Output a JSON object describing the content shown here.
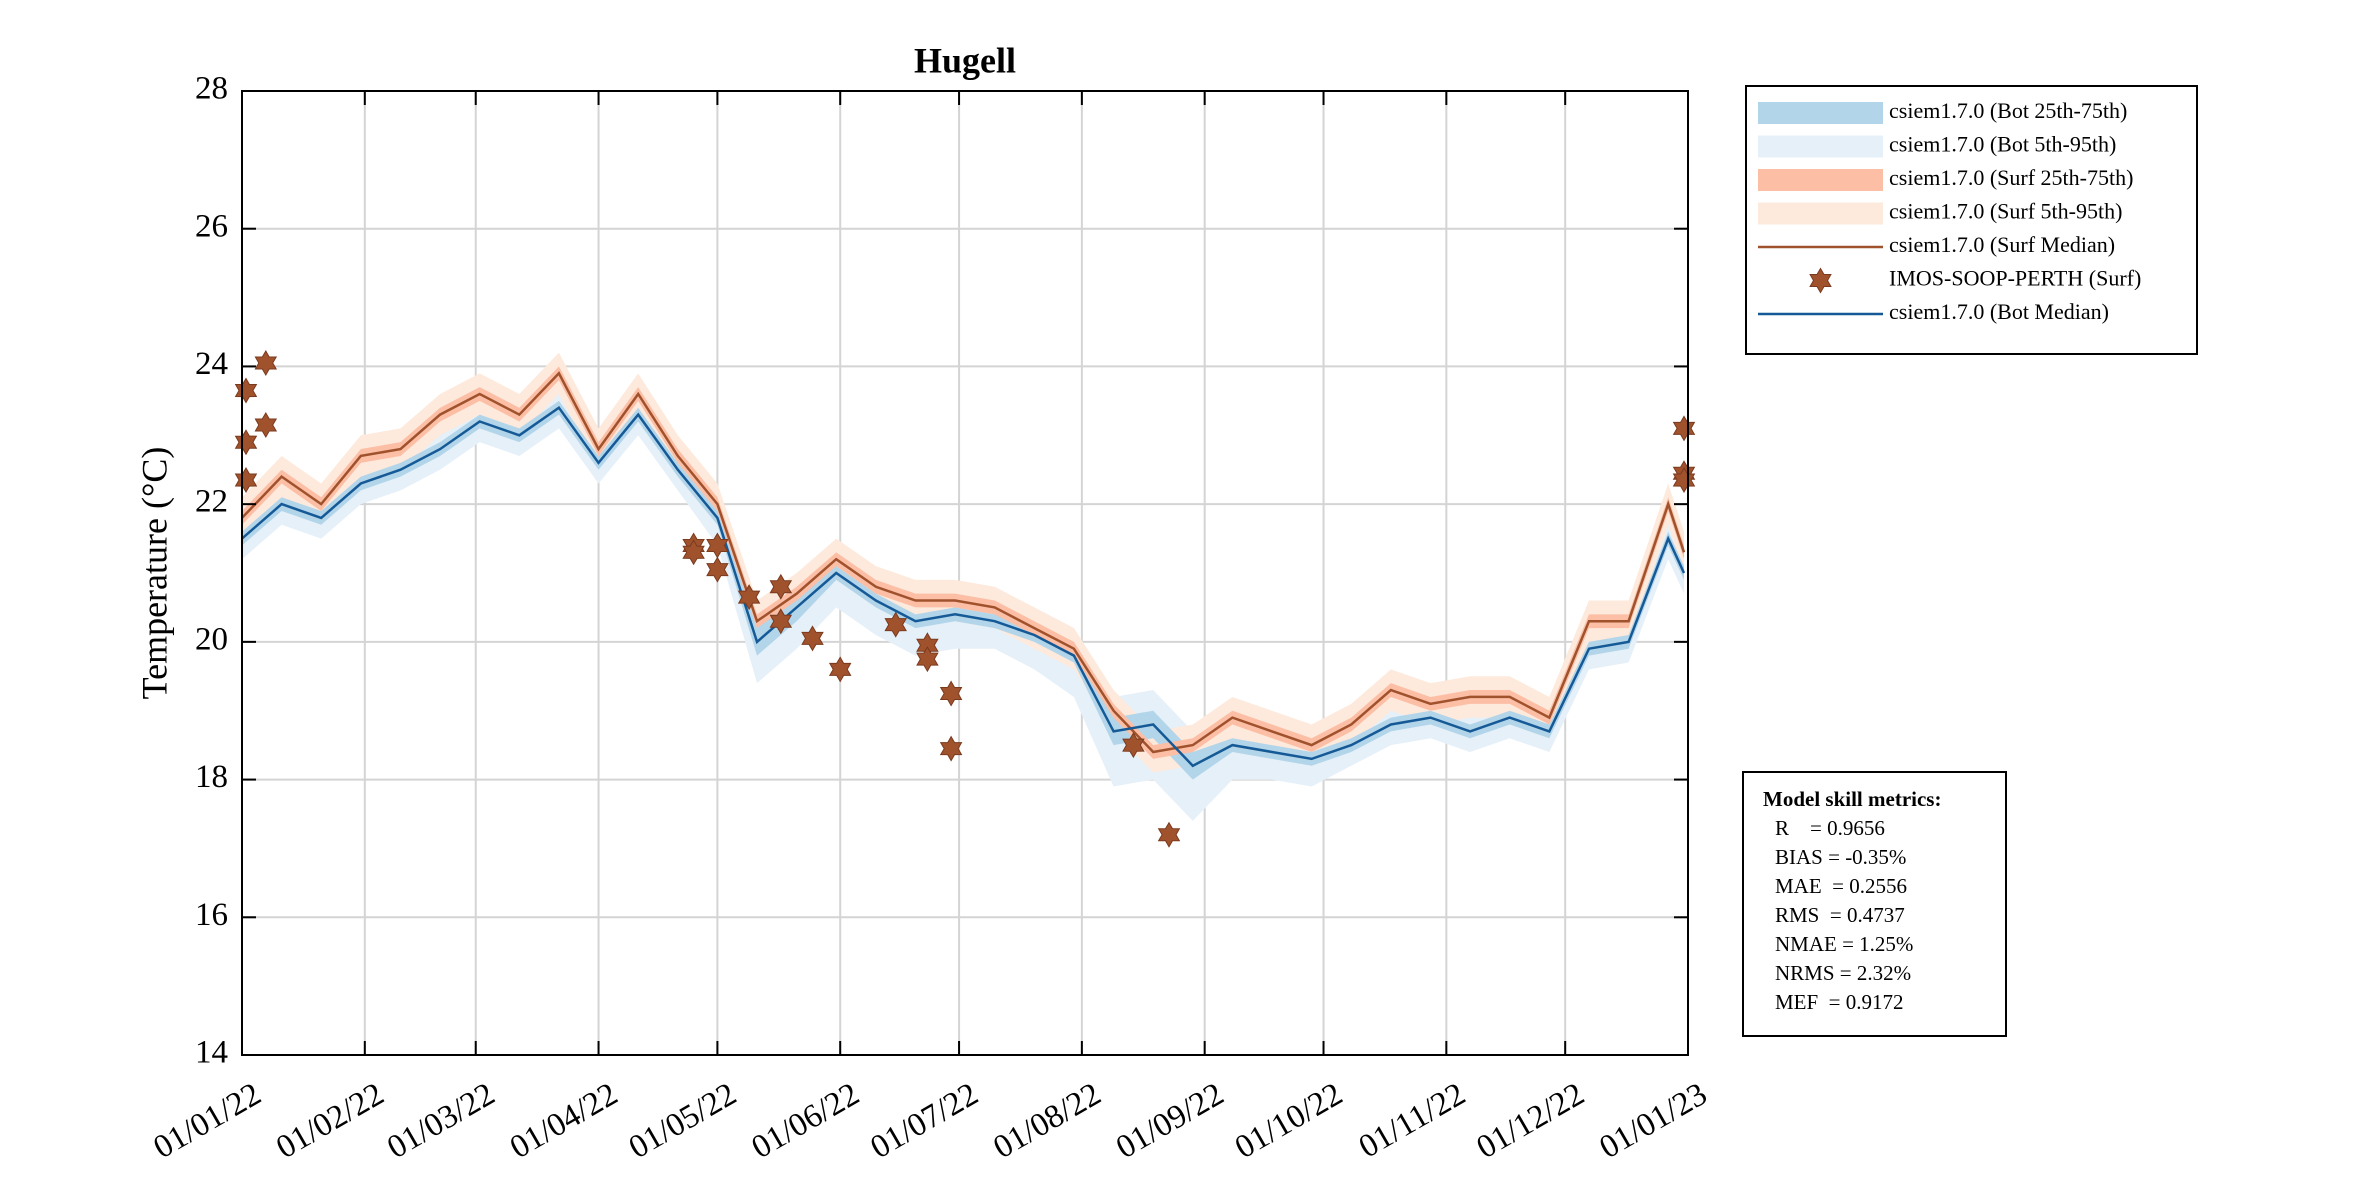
{
  "chart_data": {
    "type": "line",
    "title": "Hugell",
    "y_label": "Temperature (°C)",
    "xlim": [
      "01/01/22",
      "01/01/23"
    ],
    "xticks": [
      "01/01/22",
      "01/02/22",
      "01/03/22",
      "01/04/22",
      "01/05/22",
      "01/06/22",
      "01/07/22",
      "01/08/22",
      "01/09/22",
      "01/10/22",
      "01/11/22",
      "01/12/22",
      "01/01/23"
    ],
    "ylim": [
      14,
      28
    ],
    "yticks": [
      14,
      16,
      18,
      20,
      22,
      24,
      26,
      28
    ],
    "grid": true,
    "legend": "outside-right",
    "x": [
      "01/01/22",
      "11/01/22",
      "21/01/22",
      "31/01/22",
      "10/02/22",
      "20/02/22",
      "02/03/22",
      "12/03/22",
      "22/03/22",
      "01/04/22",
      "11/04/22",
      "21/04/22",
      "01/05/22",
      "11/05/22",
      "21/05/22",
      "31/05/22",
      "10/06/22",
      "20/06/22",
      "30/06/22",
      "10/07/22",
      "20/07/22",
      "30/07/22",
      "09/08/22",
      "19/08/22",
      "29/08/22",
      "08/09/22",
      "18/09/22",
      "28/09/22",
      "08/10/22",
      "18/10/22",
      "28/10/22",
      "07/11/22",
      "17/11/22",
      "27/11/22",
      "07/12/22",
      "17/12/22",
      "27/12/22",
      "31/12/22"
    ],
    "series": [
      {
        "name": "csiem1.7.0 (Bot 25th-75th)",
        "color": "#b3d5ea",
        "lower": [
          21.4,
          21.9,
          21.7,
          22.2,
          22.4,
          22.7,
          23.1,
          22.9,
          23.3,
          22.5,
          23.2,
          22.4,
          21.7,
          19.8,
          20.3,
          20.9,
          20.5,
          20.2,
          20.3,
          20.2,
          20.0,
          19.7,
          18.5,
          18.6,
          18.0,
          18.4,
          18.3,
          18.2,
          18.4,
          18.7,
          18.8,
          18.6,
          18.8,
          18.6,
          19.8,
          19.9,
          21.4,
          20.9
        ],
        "upper": [
          21.6,
          22.1,
          21.9,
          22.4,
          22.6,
          22.9,
          23.3,
          23.1,
          23.5,
          22.7,
          23.4,
          22.6,
          21.9,
          20.2,
          20.7,
          21.1,
          20.7,
          20.4,
          20.5,
          20.4,
          20.2,
          19.9,
          18.9,
          19.0,
          18.4,
          18.6,
          18.5,
          18.4,
          18.6,
          18.9,
          19.0,
          18.8,
          19.0,
          18.8,
          20.0,
          20.1,
          21.6,
          21.1
        ]
      },
      {
        "name": "csiem1.7.0 (Bot 5th-95th)",
        "color": "#e6f0f9",
        "lower": [
          21.2,
          21.7,
          21.5,
          22.0,
          22.2,
          22.5,
          22.9,
          22.7,
          23.1,
          22.3,
          23.0,
          22.2,
          21.4,
          19.4,
          19.9,
          20.5,
          20.1,
          19.8,
          19.9,
          19.9,
          19.6,
          19.2,
          17.9,
          18.0,
          17.4,
          18.0,
          18.0,
          17.9,
          18.2,
          18.5,
          18.6,
          18.4,
          18.6,
          18.4,
          19.6,
          19.7,
          21.2,
          20.7
        ],
        "upper": [
          21.8,
          22.3,
          22.1,
          22.6,
          22.8,
          23.1,
          23.5,
          23.3,
          23.7,
          22.9,
          23.6,
          22.8,
          22.1,
          20.5,
          21.0,
          21.4,
          21.0,
          20.7,
          20.8,
          20.7,
          20.5,
          20.2,
          19.2,
          19.3,
          18.7,
          18.8,
          18.7,
          18.6,
          18.8,
          19.1,
          19.2,
          19.0,
          19.2,
          19.0,
          20.2,
          20.3,
          21.8,
          21.3
        ]
      },
      {
        "name": "csiem1.7.0 (Surf 25th-75th)",
        "color": "#fcbfa6",
        "lower": [
          21.7,
          22.3,
          21.9,
          22.6,
          22.7,
          23.2,
          23.5,
          23.2,
          23.8,
          22.7,
          23.5,
          22.6,
          21.9,
          20.2,
          20.6,
          21.1,
          20.7,
          20.5,
          20.5,
          20.4,
          20.1,
          19.8,
          18.9,
          18.3,
          18.4,
          18.8,
          18.6,
          18.4,
          18.7,
          19.2,
          19.0,
          19.1,
          19.1,
          18.8,
          20.2,
          20.2,
          21.9,
          21.2
        ],
        "upper": [
          21.9,
          22.5,
          22.1,
          22.8,
          22.9,
          23.4,
          23.7,
          23.4,
          24.0,
          22.9,
          23.7,
          22.8,
          22.1,
          20.4,
          20.8,
          21.3,
          20.9,
          20.7,
          20.7,
          20.6,
          20.3,
          20.0,
          19.1,
          18.5,
          18.6,
          19.0,
          18.8,
          18.6,
          18.9,
          19.4,
          19.2,
          19.3,
          19.3,
          19.0,
          20.4,
          20.4,
          22.1,
          21.4
        ]
      },
      {
        "name": "csiem1.7.0 (Surf 5th-95th)",
        "color": "#fdeadc",
        "lower": [
          21.5,
          22.1,
          21.7,
          22.4,
          22.5,
          23.0,
          23.3,
          23.0,
          23.6,
          22.5,
          23.3,
          22.4,
          21.7,
          20.0,
          20.4,
          20.9,
          20.5,
          20.3,
          20.3,
          20.2,
          19.9,
          19.6,
          18.7,
          18.1,
          18.2,
          18.6,
          18.4,
          18.2,
          18.5,
          19.0,
          18.8,
          18.9,
          18.9,
          18.6,
          20.0,
          20.0,
          21.7,
          21.0
        ],
        "upper": [
          22.1,
          22.7,
          22.3,
          23.0,
          23.1,
          23.6,
          23.9,
          23.6,
          24.2,
          23.1,
          23.9,
          23.0,
          22.3,
          20.6,
          21.0,
          21.5,
          21.1,
          20.9,
          20.9,
          20.8,
          20.5,
          20.2,
          19.3,
          18.7,
          18.8,
          19.2,
          19.0,
          18.8,
          19.1,
          19.6,
          19.4,
          19.5,
          19.5,
          19.2,
          20.6,
          20.6,
          22.3,
          21.6
        ]
      },
      {
        "name": "csiem1.7.0 (Surf Median)",
        "color": "#a0522d",
        "values": [
          21.8,
          22.4,
          22.0,
          22.7,
          22.8,
          23.3,
          23.6,
          23.3,
          23.9,
          22.8,
          23.6,
          22.7,
          22.0,
          20.3,
          20.7,
          21.2,
          20.8,
          20.6,
          20.6,
          20.5,
          20.2,
          19.9,
          19.0,
          18.4,
          18.5,
          18.9,
          18.7,
          18.5,
          18.8,
          19.3,
          19.1,
          19.2,
          19.2,
          18.9,
          20.3,
          20.3,
          22.0,
          21.3
        ]
      },
      {
        "name": "IMOS-SOOP-PERTH (Surf)",
        "color": "#a0522d",
        "x": [
          "02/01/22",
          "02/01/22",
          "02/01/22",
          "07/01/22",
          "07/01/22",
          "25/04/22",
          "25/04/22",
          "01/05/22",
          "01/05/22",
          "09/05/22",
          "17/05/22",
          "17/05/22",
          "25/05/22",
          "01/06/22",
          "15/06/22",
          "23/06/22",
          "23/06/22",
          "29/06/22",
          "29/06/22",
          "14/08/22",
          "23/08/22",
          "31/12/22",
          "31/12/22",
          "31/12/22"
        ],
        "values": [
          23.65,
          22.9,
          22.35,
          24.05,
          23.15,
          21.4,
          21.3,
          21.4,
          21.05,
          20.65,
          20.8,
          20.3,
          20.05,
          19.6,
          20.25,
          19.95,
          19.75,
          19.25,
          18.45,
          18.5,
          17.2,
          23.1,
          22.45,
          22.35
        ]
      },
      {
        "name": "csiem1.7.0 (Bot Median)",
        "color": "#155a96",
        "values": [
          21.5,
          22.0,
          21.8,
          22.3,
          22.5,
          22.8,
          23.2,
          23.0,
          23.4,
          22.6,
          23.3,
          22.5,
          21.8,
          20.0,
          20.5,
          21.0,
          20.6,
          20.3,
          20.4,
          20.3,
          20.1,
          19.8,
          18.7,
          18.8,
          18.2,
          18.5,
          18.4,
          18.3,
          18.5,
          18.8,
          18.9,
          18.7,
          18.9,
          18.7,
          19.9,
          20.0,
          21.5,
          21.0
        ]
      }
    ],
    "metrics": {
      "title": "Model skill metrics:",
      "lines": [
        "R    = 0.9656",
        "BIAS = -0.35%",
        "MAE  = 0.2556",
        "RMS  = 0.4737",
        "NMAE = 1.25%",
        "NRMS = 2.32%",
        "MEF  = 0.9172"
      ]
    }
  }
}
